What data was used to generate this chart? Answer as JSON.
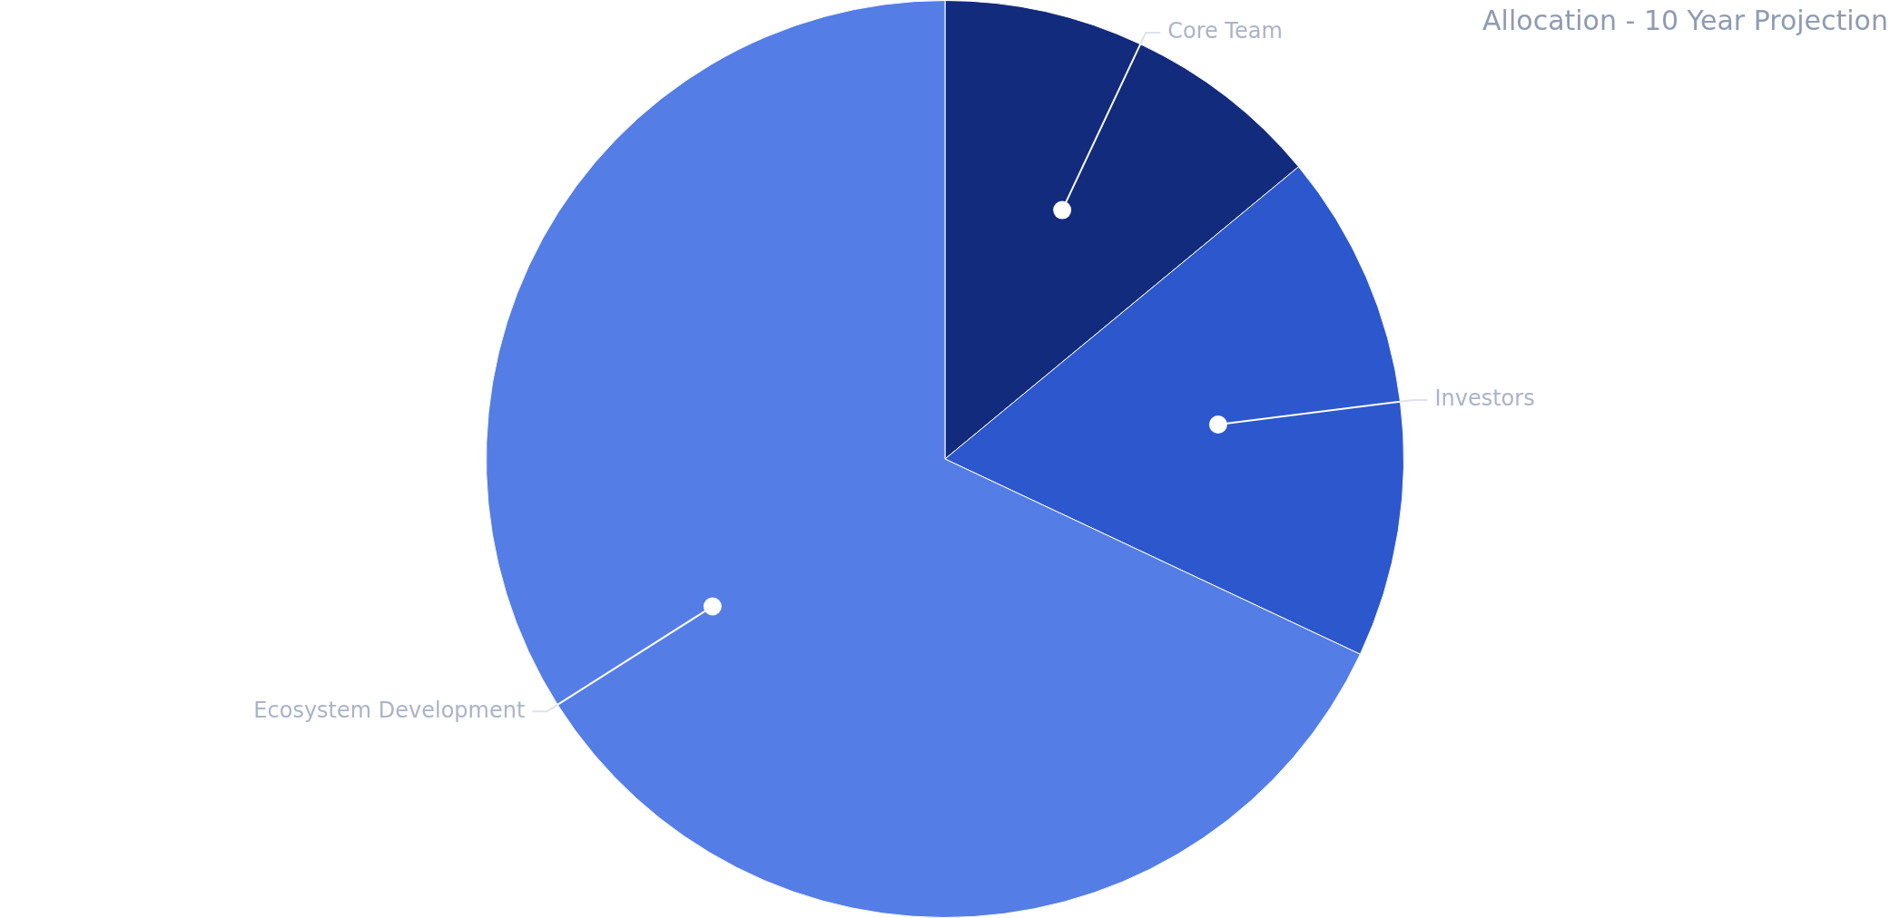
{
  "chart_data": {
    "type": "pie",
    "title": "Allocation - 10 Year Projection",
    "categories": [
      "Core Team",
      "Investors",
      "Ecosystem Development"
    ],
    "values": [
      14,
      18,
      68
    ],
    "colors": [
      "#122b7c",
      "#2d57cc",
      "#547de6"
    ],
    "legend": false
  }
}
